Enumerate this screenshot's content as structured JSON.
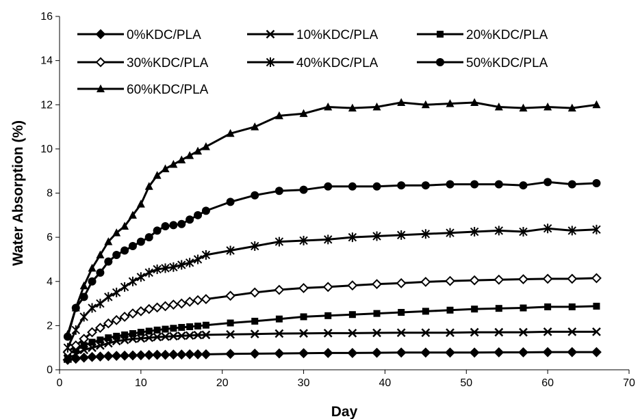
{
  "chart_data": {
    "type": "line",
    "xlabel": "Day",
    "ylabel": "Water Absorption (%)",
    "xlim": [
      0,
      70
    ],
    "ylim": [
      0,
      16
    ],
    "xticks": [
      0,
      10,
      20,
      30,
      40,
      50,
      60,
      70
    ],
    "yticks": [
      0,
      2,
      4,
      6,
      8,
      10,
      12,
      14,
      16
    ],
    "grid": false,
    "legend_position": "top-left",
    "line_color": "#000000",
    "x": [
      1,
      2,
      3,
      4,
      5,
      6,
      7,
      8,
      9,
      10,
      11,
      12,
      13,
      14,
      15,
      16,
      17,
      18,
      21,
      24,
      27,
      30,
      33,
      36,
      39,
      42,
      45,
      48,
      51,
      54,
      57,
      60,
      63,
      66
    ],
    "series": [
      {
        "name": "0%KDC/PLA",
        "marker": "diamond",
        "values": [
          0.45,
          0.5,
          0.55,
          0.58,
          0.6,
          0.62,
          0.63,
          0.64,
          0.65,
          0.66,
          0.67,
          0.68,
          0.68,
          0.69,
          0.69,
          0.7,
          0.7,
          0.7,
          0.72,
          0.73,
          0.74,
          0.75,
          0.76,
          0.76,
          0.77,
          0.78,
          0.78,
          0.78,
          0.78,
          0.79,
          0.79,
          0.8,
          0.8,
          0.8
        ]
      },
      {
        "name": "10%KDC/PLA",
        "marker": "x",
        "values": [
          0.5,
          0.7,
          0.9,
          1.0,
          1.1,
          1.2,
          1.3,
          1.35,
          1.4,
          1.42,
          1.45,
          1.48,
          1.5,
          1.52,
          1.54,
          1.55,
          1.57,
          1.58,
          1.6,
          1.62,
          1.64,
          1.65,
          1.66,
          1.66,
          1.67,
          1.68,
          1.68,
          1.68,
          1.7,
          1.7,
          1.7,
          1.72,
          1.72,
          1.72
        ]
      },
      {
        "name": "20%KDC/PLA",
        "marker": "square",
        "values": [
          0.7,
          0.9,
          1.1,
          1.25,
          1.35,
          1.45,
          1.52,
          1.58,
          1.64,
          1.7,
          1.75,
          1.8,
          1.84,
          1.88,
          1.92,
          1.95,
          1.98,
          2.02,
          2.12,
          2.2,
          2.3,
          2.4,
          2.45,
          2.5,
          2.55,
          2.6,
          2.65,
          2.7,
          2.75,
          2.78,
          2.8,
          2.85,
          2.85,
          2.88
        ]
      },
      {
        "name": "30%KDC/PLA",
        "marker": "diamond-open",
        "values": [
          0.8,
          1.1,
          1.4,
          1.7,
          1.9,
          2.1,
          2.25,
          2.4,
          2.55,
          2.65,
          2.75,
          2.82,
          2.88,
          2.95,
          3.0,
          3.08,
          3.15,
          3.2,
          3.35,
          3.5,
          3.62,
          3.7,
          3.75,
          3.82,
          3.88,
          3.92,
          3.98,
          4.02,
          4.05,
          4.08,
          4.1,
          4.12,
          4.12,
          4.15
        ]
      },
      {
        "name": "40%KDC/PLA",
        "marker": "asterisk",
        "values": [
          1.0,
          1.8,
          2.4,
          2.8,
          3.0,
          3.3,
          3.5,
          3.75,
          4.0,
          4.2,
          4.4,
          4.55,
          4.6,
          4.65,
          4.75,
          4.85,
          5.0,
          5.2,
          5.4,
          5.6,
          5.8,
          5.85,
          5.9,
          6.0,
          6.05,
          6.1,
          6.15,
          6.2,
          6.25,
          6.3,
          6.25,
          6.4,
          6.3,
          6.35
        ]
      },
      {
        "name": "50%KDC/PLA",
        "marker": "circle",
        "values": [
          1.5,
          2.8,
          3.3,
          4.0,
          4.4,
          4.9,
          5.2,
          5.4,
          5.6,
          5.8,
          6.0,
          6.3,
          6.5,
          6.55,
          6.6,
          6.8,
          7.0,
          7.2,
          7.6,
          7.9,
          8.1,
          8.15,
          8.3,
          8.3,
          8.3,
          8.35,
          8.35,
          8.4,
          8.4,
          8.4,
          8.35,
          8.5,
          8.4,
          8.45
        ]
      },
      {
        "name": "60%KDC/PLA",
        "marker": "triangle",
        "values": [
          1.6,
          2.8,
          3.8,
          4.6,
          5.2,
          5.8,
          6.2,
          6.5,
          7.0,
          7.5,
          8.3,
          8.8,
          9.1,
          9.3,
          9.5,
          9.7,
          9.9,
          10.1,
          10.7,
          11.0,
          11.5,
          11.6,
          11.9,
          11.85,
          11.9,
          12.1,
          12.0,
          12.05,
          12.1,
          11.9,
          11.85,
          11.9,
          11.85,
          12.0
        ]
      }
    ]
  }
}
